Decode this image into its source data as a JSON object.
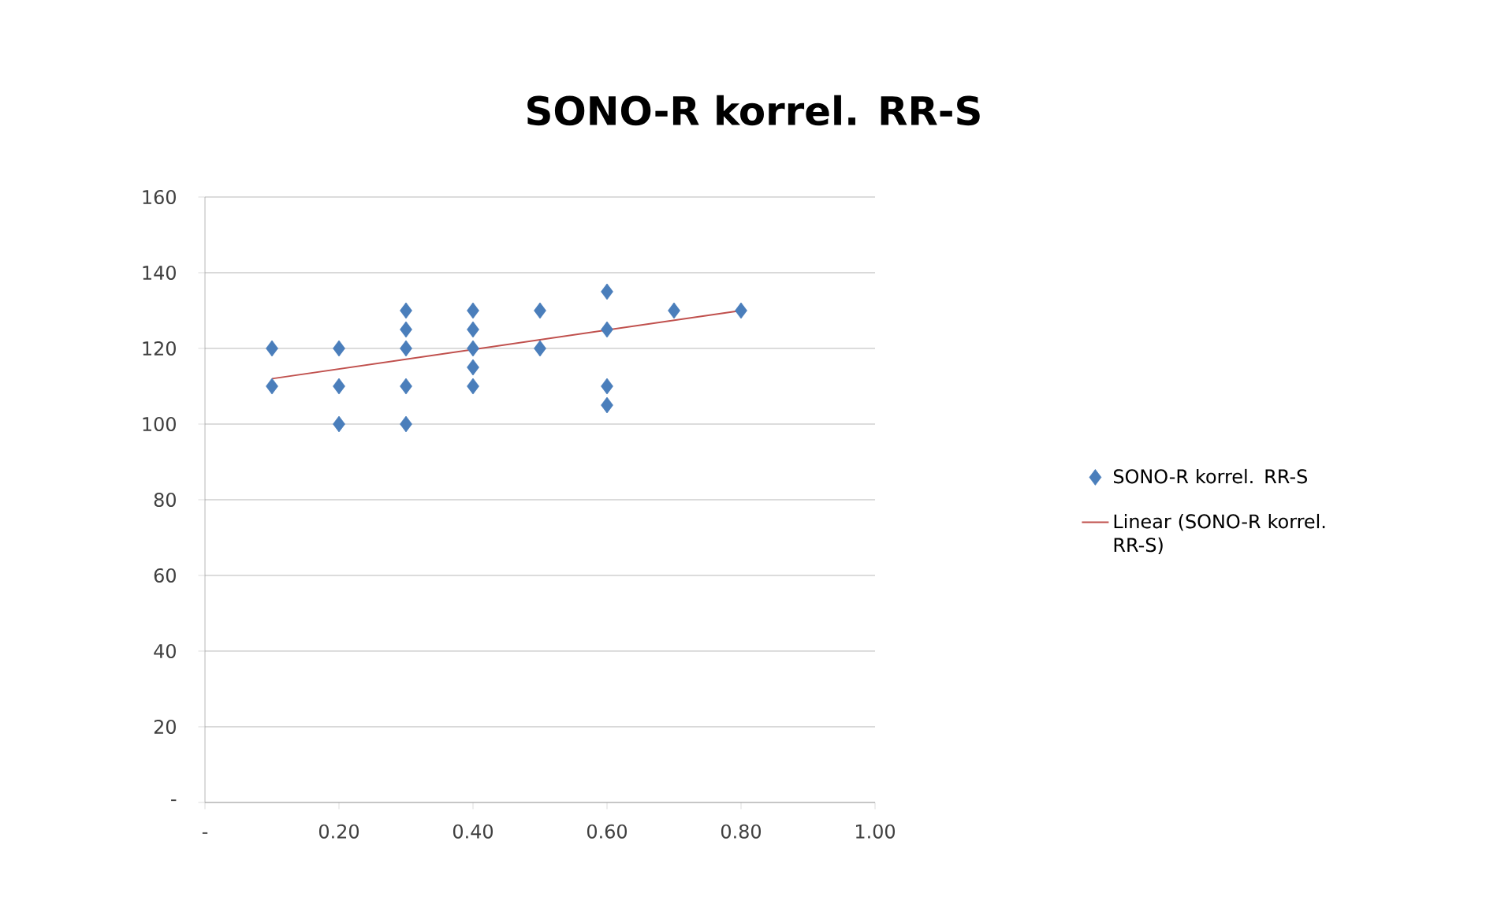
{
  "chart_data": {
    "type": "scatter",
    "title": "SONO-R korrel. RR-S",
    "series": [
      {
        "name": "SONO-R korrel. RR-S",
        "color": "#4a7ebb",
        "marker": "diamond",
        "x": [
          0.1,
          0.1,
          0.2,
          0.2,
          0.2,
          0.3,
          0.3,
          0.3,
          0.3,
          0.3,
          0.4,
          0.4,
          0.4,
          0.4,
          0.4,
          0.5,
          0.5,
          0.6,
          0.6,
          0.6,
          0.6,
          0.7,
          0.8
        ],
        "values": [
          120,
          110,
          120,
          110,
          100,
          130,
          125,
          120,
          110,
          100,
          130,
          125,
          120,
          115,
          110,
          130,
          120,
          135,
          125,
          110,
          105,
          130,
          130
        ]
      },
      {
        "name": "Linear (SONO-R korrel. RR-S)",
        "type": "line",
        "color": "#c0504d",
        "marker": "none",
        "x": [
          0.1,
          0.8
        ],
        "values": [
          112,
          130
        ]
      }
    ],
    "xlim": [
      0,
      1
    ],
    "xticks": [
      {
        "value": 0,
        "label": "-"
      },
      {
        "value": 0.2,
        "label": "0.20"
      },
      {
        "value": 0.4,
        "label": "0.40"
      },
      {
        "value": 0.6,
        "label": "0.60"
      },
      {
        "value": 0.8,
        "label": "0.80"
      },
      {
        "value": 1,
        "label": "1.00"
      }
    ],
    "ylim": [
      0,
      160
    ],
    "yticks": [
      {
        "value": 0,
        "label": "-"
      },
      20,
      40,
      60,
      80,
      100,
      120,
      140,
      160
    ],
    "grid": "y",
    "legend": "right"
  }
}
